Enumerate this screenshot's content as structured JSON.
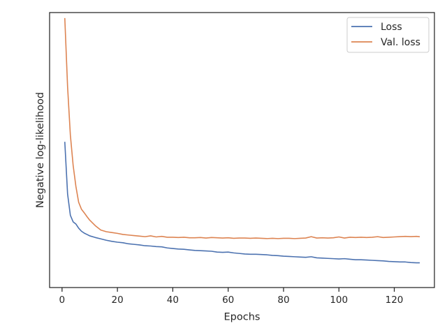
{
  "chart_data": {
    "type": "line",
    "xlabel": "Epochs",
    "ylabel": "Negative log-likelihood",
    "xlim": [
      -4.5,
      134.5
    ],
    "ylim": [
      0.0,
      1.0
    ],
    "y_tick_labels_shown": false,
    "x_ticks": [
      0,
      20,
      40,
      60,
      80,
      100,
      120
    ],
    "grid": false,
    "legend": "top-right",
    "series": [
      {
        "name": "Loss",
        "color": "#4c72b0",
        "x": [
          1,
          2,
          3,
          4,
          5,
          6,
          7,
          8,
          9,
          10,
          12,
          14,
          16,
          18,
          20,
          22,
          24,
          26,
          28,
          30,
          32,
          34,
          36,
          38,
          40,
          42,
          44,
          46,
          48,
          50,
          52,
          54,
          56,
          58,
          60,
          62,
          64,
          66,
          68,
          70,
          72,
          74,
          76,
          78,
          80,
          82,
          84,
          86,
          88,
          90,
          92,
          94,
          96,
          98,
          100,
          102,
          104,
          106,
          108,
          110,
          112,
          114,
          116,
          118,
          120,
          122,
          124,
          126,
          128,
          129
        ],
        "y": [
          0.528,
          0.34,
          0.263,
          0.239,
          0.231,
          0.216,
          0.205,
          0.198,
          0.193,
          0.188,
          0.182,
          0.177,
          0.172,
          0.168,
          0.165,
          0.163,
          0.159,
          0.157,
          0.155,
          0.152,
          0.151,
          0.149,
          0.148,
          0.144,
          0.142,
          0.14,
          0.139,
          0.137,
          0.135,
          0.134,
          0.133,
          0.132,
          0.129,
          0.128,
          0.129,
          0.126,
          0.124,
          0.122,
          0.121,
          0.121,
          0.12,
          0.119,
          0.117,
          0.116,
          0.114,
          0.113,
          0.112,
          0.111,
          0.11,
          0.112,
          0.108,
          0.107,
          0.106,
          0.105,
          0.104,
          0.105,
          0.103,
          0.101,
          0.101,
          0.1,
          0.099,
          0.098,
          0.097,
          0.095,
          0.094,
          0.093,
          0.093,
          0.091,
          0.09,
          0.09
        ]
      },
      {
        "name": "Val. loss",
        "color": "#dd8452",
        "x": [
          1,
          2,
          3,
          4,
          5,
          6,
          7,
          8,
          9,
          10,
          12,
          14,
          16,
          18,
          20,
          22,
          24,
          26,
          28,
          30,
          32,
          34,
          36,
          38,
          40,
          42,
          44,
          46,
          48,
          50,
          52,
          54,
          56,
          58,
          60,
          62,
          64,
          66,
          68,
          70,
          72,
          74,
          76,
          78,
          80,
          82,
          84,
          86,
          88,
          90,
          92,
          94,
          96,
          98,
          100,
          102,
          104,
          106,
          108,
          110,
          112,
          114,
          116,
          118,
          120,
          122,
          124,
          126,
          128,
          129
        ],
        "y": [
          0.978,
          0.73,
          0.555,
          0.445,
          0.368,
          0.31,
          0.285,
          0.272,
          0.258,
          0.245,
          0.225,
          0.209,
          0.203,
          0.2,
          0.197,
          0.193,
          0.191,
          0.189,
          0.187,
          0.185,
          0.188,
          0.184,
          0.186,
          0.183,
          0.183,
          0.182,
          0.183,
          0.181,
          0.181,
          0.182,
          0.18,
          0.182,
          0.181,
          0.18,
          0.181,
          0.179,
          0.18,
          0.18,
          0.179,
          0.18,
          0.179,
          0.178,
          0.179,
          0.178,
          0.179,
          0.179,
          0.178,
          0.179,
          0.18,
          0.185,
          0.18,
          0.181,
          0.18,
          0.181,
          0.184,
          0.18,
          0.183,
          0.182,
          0.183,
          0.182,
          0.183,
          0.185,
          0.182,
          0.183,
          0.184,
          0.185,
          0.186,
          0.185,
          0.186,
          0.185
        ]
      }
    ]
  }
}
